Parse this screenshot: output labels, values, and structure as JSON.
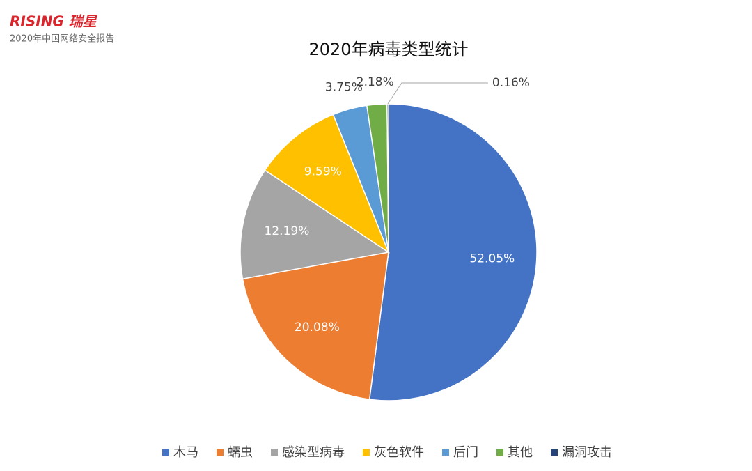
{
  "header": {
    "logo": "RISING 瑞星",
    "report": "2020年中国网络安全报告"
  },
  "chart_data": {
    "type": "pie",
    "title": "2020年病毒类型统计",
    "categories": [
      "木马",
      "蠕虫",
      "感染型病毒",
      "灰色软件",
      "后门",
      "其他",
      "漏洞攻击"
    ],
    "values": [
      52.05,
      20.08,
      12.19,
      9.59,
      3.75,
      2.18,
      0.16
    ],
    "value_labels": [
      "52.05%",
      "20.08%",
      "12.19%",
      "9.59%",
      "3.75%",
      "2.18%",
      "0.16%"
    ],
    "colors": [
      "#4472c4",
      "#ed7d31",
      "#a5a5a5",
      "#ffc000",
      "#5b9bd5",
      "#70ad47",
      "#264478"
    ],
    "legend": "bottom"
  }
}
